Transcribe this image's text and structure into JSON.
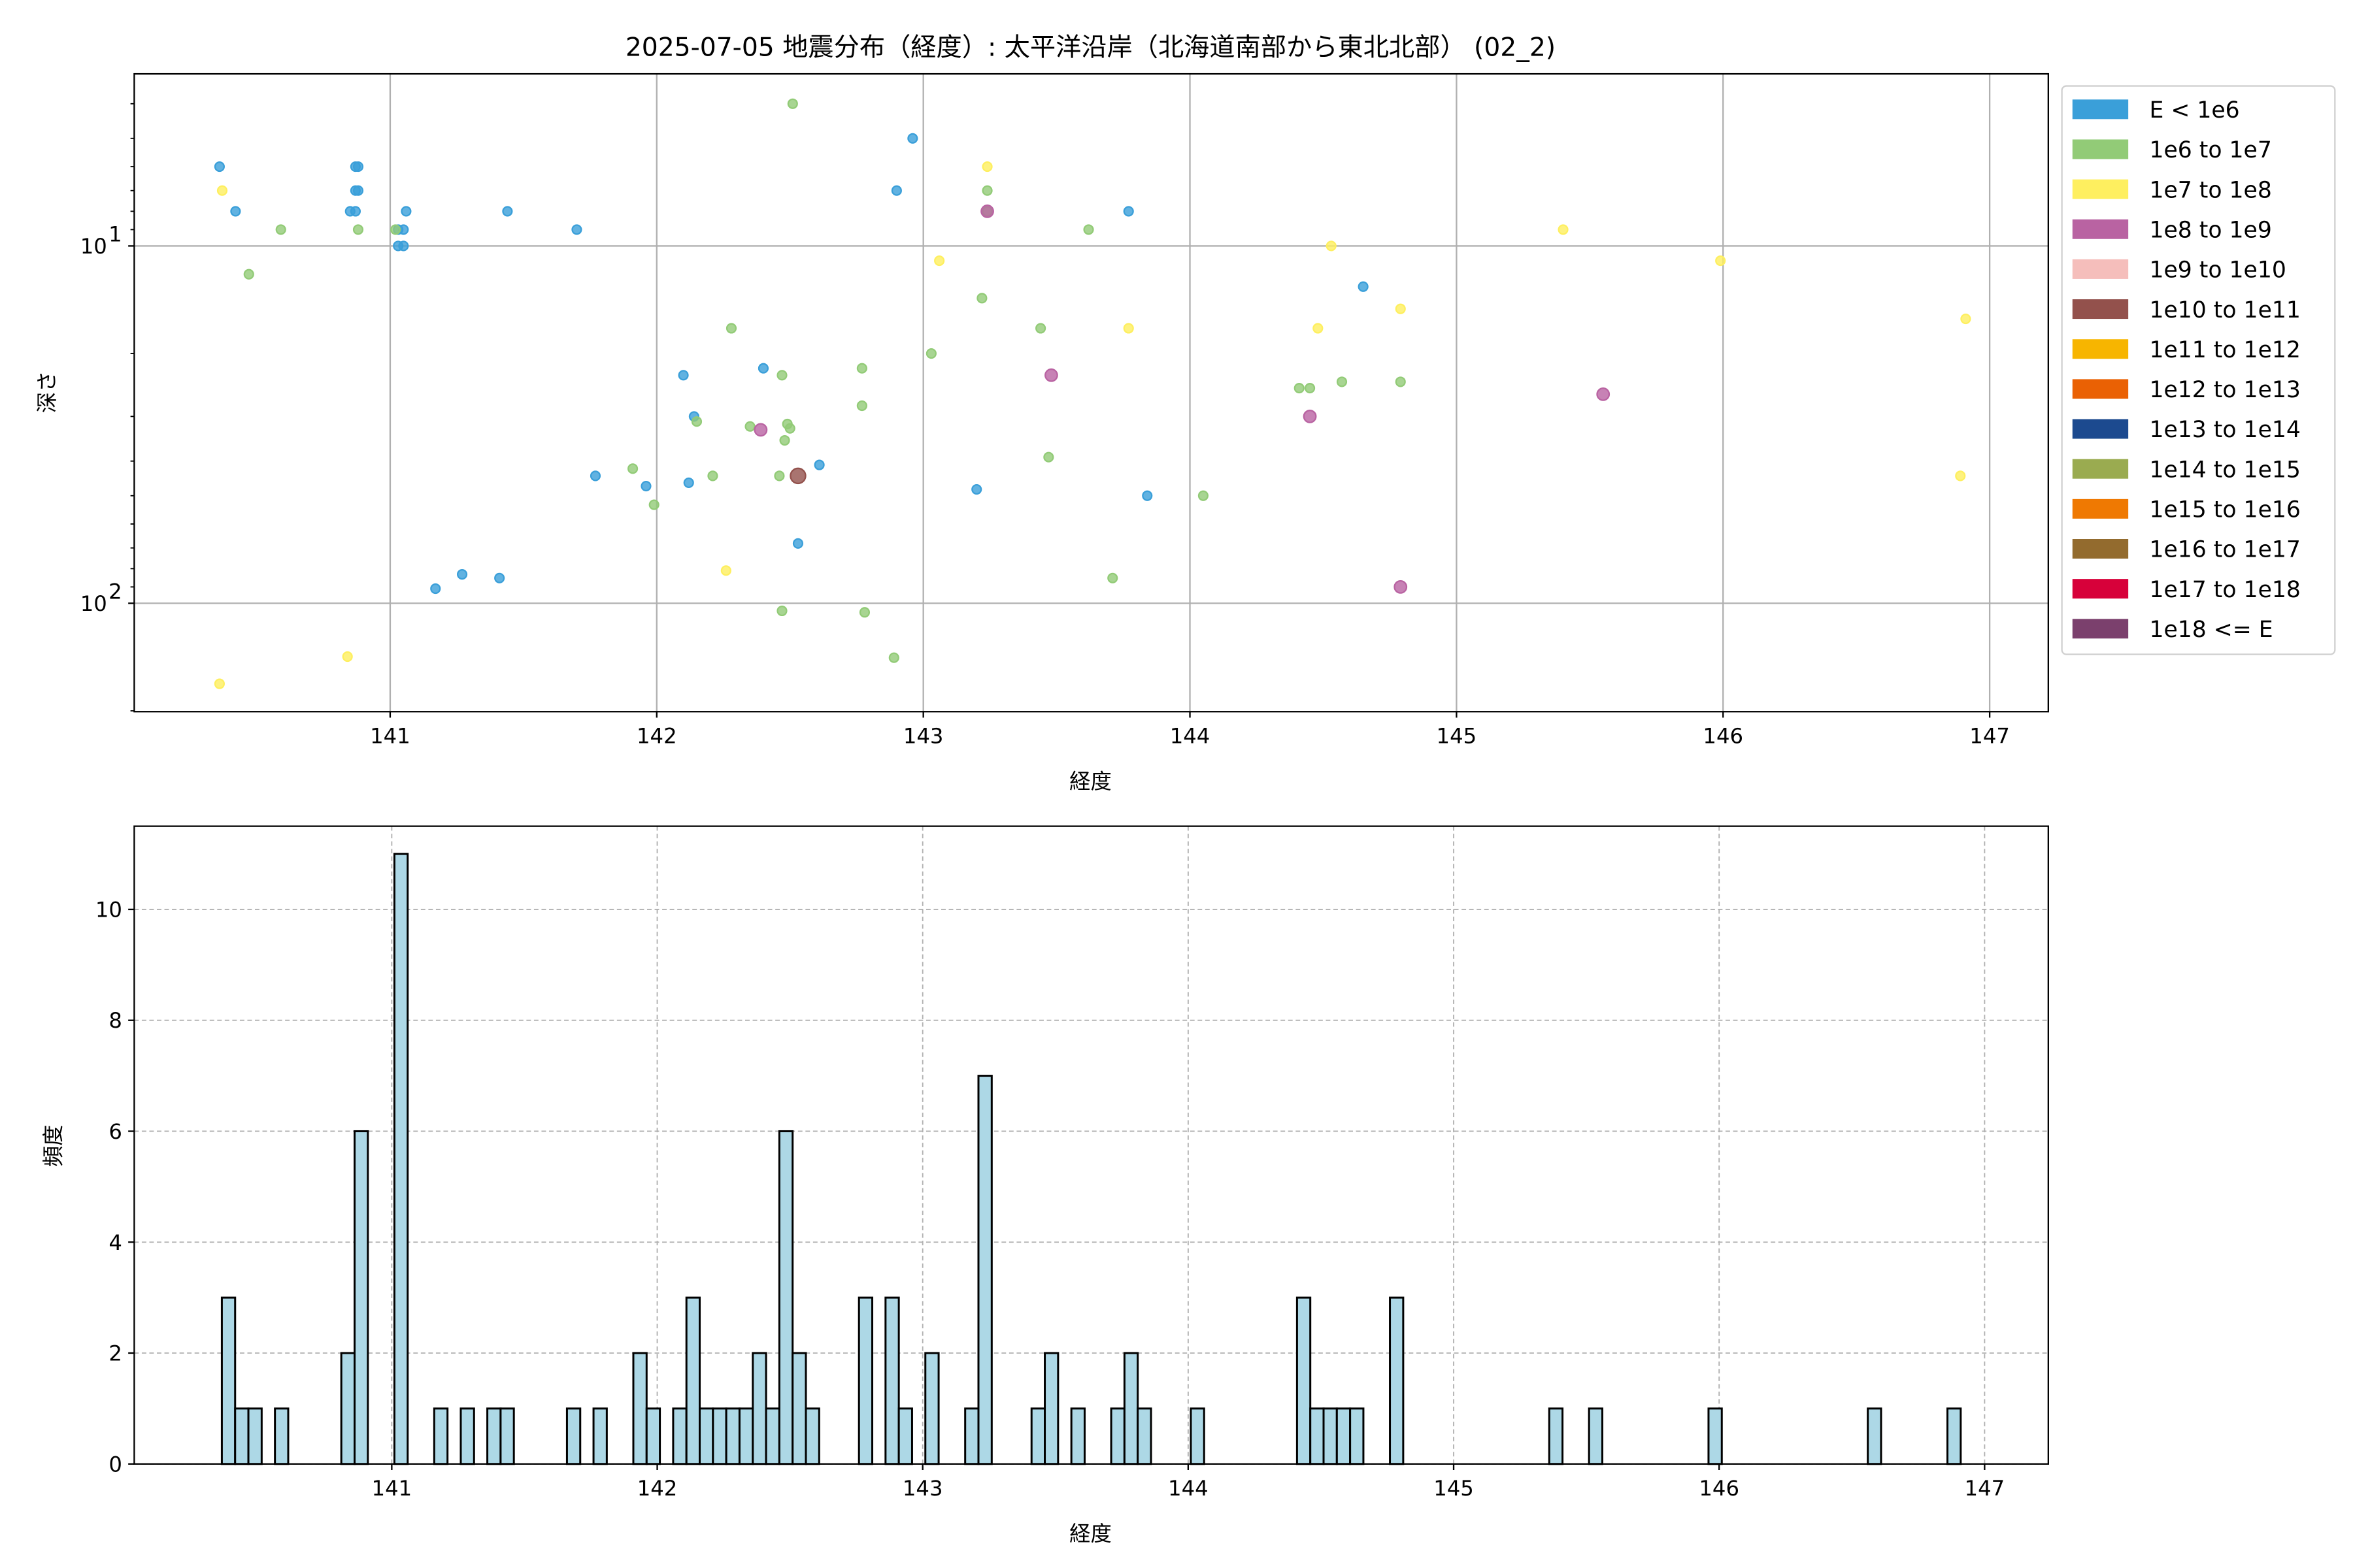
{
  "title": "2025-07-05 地震分布（経度）: 太平洋沿岸（北海道南部から東北北部） (02_2)",
  "chart_data": [
    {
      "type": "scatter",
      "xlabel": "経度",
      "ylabel": "深さ",
      "xlim": [
        140.04,
        147.22
      ],
      "ylim": [
        201,
        3.3
      ],
      "yscale": "log",
      "y_inverted": true,
      "grid": true,
      "x_ticks": [
        "141",
        "142",
        "143",
        "144",
        "145",
        "146",
        "147"
      ],
      "y_ticks": [
        {
          "base": "10",
          "exp": "1",
          "value": 10
        },
        {
          "base": "10",
          "exp": "2",
          "value": 100
        }
      ],
      "legend_placement": "outside-right",
      "legend": [
        {
          "label": "E < 1e6",
          "color": "#3a9fd9"
        },
        {
          "label": "1e6 to 1e7",
          "color": "#92cb77"
        },
        {
          "label": "1e7 to 1e8",
          "color": "#feef5f"
        },
        {
          "label": "1e8 to 1e9",
          "color": "#b963a2"
        },
        {
          "label": "1e9 to 1e10",
          "color": "#f5bebb"
        },
        {
          "label": "1e10 to 1e11",
          "color": "#93514c"
        },
        {
          "label": "1e11 to 1e12",
          "color": "#f7b500"
        },
        {
          "label": "1e12 to 1e13",
          "color": "#ea6104"
        },
        {
          "label": "1e13 to 1e14",
          "color": "#1c4a8f"
        },
        {
          "label": "1e14 to 1e15",
          "color": "#9aab50"
        },
        {
          "label": "1e15 to 1e16",
          "color": "#ef7902"
        },
        {
          "label": "1e16 to 1e17",
          "color": "#936b2e"
        },
        {
          "label": "1e17 to 1e18",
          "color": "#d7013a"
        },
        {
          "label": "1e18 <= E",
          "color": "#7b406d"
        }
      ],
      "points_lon_depth_class": [
        [
          140.36,
          6,
          0
        ],
        [
          140.42,
          8,
          0
        ],
        [
          140.85,
          8,
          0
        ],
        [
          140.87,
          6,
          0
        ],
        [
          140.88,
          6,
          0
        ],
        [
          140.87,
          7,
          0
        ],
        [
          140.88,
          7,
          0
        ],
        [
          140.87,
          8,
          0
        ],
        [
          141.03,
          9,
          0
        ],
        [
          141.05,
          9,
          0
        ],
        [
          141.06,
          8,
          0
        ],
        [
          141.03,
          10,
          0
        ],
        [
          141.05,
          10,
          0
        ],
        [
          141.44,
          8,
          0
        ],
        [
          141.7,
          9,
          0
        ],
        [
          142.96,
          5,
          0
        ],
        [
          142.9,
          7,
          0
        ],
        [
          143.77,
          8,
          0
        ],
        [
          144.65,
          13,
          0
        ],
        [
          142.1,
          23,
          0
        ],
        [
          142.14,
          30,
          0
        ],
        [
          142.4,
          22,
          0
        ],
        [
          142.61,
          41,
          0
        ],
        [
          141.77,
          44,
          0
        ],
        [
          141.96,
          47,
          0
        ],
        [
          142.12,
          46,
          0
        ],
        [
          143.2,
          48,
          0
        ],
        [
          143.84,
          50,
          0
        ],
        [
          141.17,
          91,
          0
        ],
        [
          141.27,
          83,
          0
        ],
        [
          141.41,
          85,
          0
        ],
        [
          142.53,
          68,
          0
        ],
        [
          142.51,
          4,
          1
        ],
        [
          140.59,
          9,
          1
        ],
        [
          140.88,
          9,
          1
        ],
        [
          140.47,
          12,
          1
        ],
        [
          141.02,
          9,
          1
        ],
        [
          142.28,
          17,
          1
        ],
        [
          142.47,
          23,
          1
        ],
        [
          142.77,
          22,
          1
        ],
        [
          143.03,
          20,
          1
        ],
        [
          143.22,
          14,
          1
        ],
        [
          143.44,
          17,
          1
        ],
        [
          143.62,
          9,
          1
        ],
        [
          143.24,
          7,
          1
        ],
        [
          143.24,
          8,
          1
        ],
        [
          142.49,
          31.5,
          1
        ],
        [
          142.5,
          32.4,
          1
        ],
        [
          142.35,
          32,
          1
        ],
        [
          142.48,
          35,
          1
        ],
        [
          142.15,
          31,
          1
        ],
        [
          142.21,
          44,
          1
        ],
        [
          141.91,
          42,
          1
        ],
        [
          141.99,
          53,
          1
        ],
        [
          142.77,
          28,
          1
        ],
        [
          142.46,
          44,
          1
        ],
        [
          143.47,
          39,
          1
        ],
        [
          144.05,
          50,
          1
        ],
        [
          144.41,
          25,
          1
        ],
        [
          144.45,
          25,
          1
        ],
        [
          144.57,
          24,
          1
        ],
        [
          144.79,
          24,
          1
        ],
        [
          142.47,
          105,
          1
        ],
        [
          142.78,
          106,
          1
        ],
        [
          142.89,
          142,
          1
        ],
        [
          143.71,
          85,
          1
        ],
        [
          140.37,
          7,
          2
        ],
        [
          140.36,
          168,
          2
        ],
        [
          140.84,
          141,
          2
        ],
        [
          142.26,
          81,
          2
        ],
        [
          143.24,
          6,
          2
        ],
        [
          143.06,
          11,
          2
        ],
        [
          143.77,
          17,
          2
        ],
        [
          144.48,
          17,
          2
        ],
        [
          144.53,
          10,
          2
        ],
        [
          144.79,
          15,
          2
        ],
        [
          145.4,
          9,
          2
        ],
        [
          145.99,
          11,
          2
        ],
        [
          146.91,
          16,
          2
        ],
        [
          146.89,
          44,
          2
        ],
        [
          142.39,
          32.7,
          3
        ],
        [
          143.48,
          23,
          3
        ],
        [
          144.45,
          30,
          3
        ],
        [
          144.79,
          90,
          3
        ],
        [
          145.55,
          26,
          3
        ],
        [
          143.24,
          8,
          3
        ],
        [
          142.53,
          44,
          5
        ]
      ]
    },
    {
      "type": "bar",
      "subtype": "histogram",
      "xlabel": "経度",
      "ylabel": "頻度",
      "xlim": [
        140.03,
        147.24
      ],
      "ylim": [
        0,
        11.5
      ],
      "grid": true,
      "grid_style": "dashed",
      "bar_color": "#add8e6",
      "edge_color": "#000000",
      "bin_width": 0.05,
      "x_ticks": [
        "141",
        "142",
        "143",
        "144",
        "145",
        "146",
        "147"
      ],
      "y_ticks": [
        "0",
        "2",
        "4",
        "6",
        "8",
        "10"
      ],
      "bin_starts": [
        140.36,
        140.41,
        140.46,
        140.56,
        140.81,
        140.86,
        141.01,
        141.16,
        141.26,
        141.36,
        141.41,
        141.66,
        141.76,
        141.91,
        141.96,
        142.06,
        142.11,
        142.16,
        142.21,
        142.26,
        142.31,
        142.36,
        142.41,
        142.46,
        142.51,
        142.56,
        142.76,
        142.86,
        142.91,
        143.01,
        143.16,
        143.21,
        143.41,
        143.46,
        143.56,
        143.71,
        143.76,
        143.81,
        144.01,
        144.41,
        144.46,
        144.51,
        144.56,
        144.61,
        144.76,
        145.36,
        145.51,
        145.96,
        146.56,
        146.86
      ],
      "counts": [
        3,
        1,
        1,
        1,
        2,
        6,
        11,
        1,
        1,
        1,
        1,
        1,
        1,
        2,
        1,
        1,
        3,
        1,
        1,
        1,
        1,
        2,
        1,
        6,
        2,
        1,
        3,
        3,
        1,
        2,
        1,
        7,
        1,
        2,
        1,
        1,
        2,
        1,
        1,
        3,
        1,
        1,
        1,
        1,
        3,
        1,
        1,
        1,
        1,
        1
      ]
    }
  ]
}
